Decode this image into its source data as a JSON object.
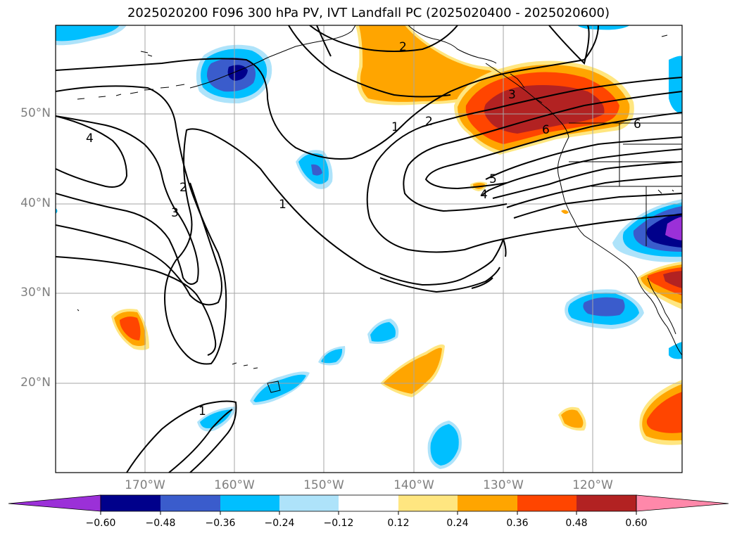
{
  "title": "2025020200 F096 300 hPa PV, IVT Landfall PC (2025020400 - 2025020600)",
  "map": {
    "region": "North Pacific / western North America",
    "latitude_labels": [
      "50°N",
      "40°N",
      "30°N",
      "20°N"
    ],
    "longitude_labels": [
      "170°W",
      "160°W",
      "150°W",
      "140°W",
      "130°W",
      "120°W"
    ],
    "gridlines": true,
    "contour_labels": [
      "2",
      "1",
      "2",
      "3",
      "4",
      "2",
      "3",
      "1",
      "5",
      "4",
      "6",
      "1",
      "6"
    ]
  },
  "colorbar": {
    "ticks": [
      "−0.60",
      "−0.48",
      "−0.36",
      "−0.24",
      "−0.12",
      "0.12",
      "0.24",
      "0.36",
      "0.48",
      "0.60"
    ],
    "colors": [
      "#9b30d8",
      "#00008b",
      "#3a5ccc",
      "#00bfff",
      "#aee3fa",
      "#ffffff",
      "#ffe680",
      "#ffa500",
      "#ff4500",
      "#b22222",
      "#ff88aa"
    ],
    "extend": "both"
  },
  "colors": {
    "neg_strong": "#3a5ccc",
    "neg_mid": "#00bfff",
    "neg_weak": "#aee3fa",
    "neg_darkest": "#00008b",
    "neg_extreme": "#9b30d8",
    "pos_weak": "#ffe680",
    "pos_mid": "#ffa500",
    "pos_strong": "#ff4500",
    "pos_darkest": "#b22222"
  }
}
